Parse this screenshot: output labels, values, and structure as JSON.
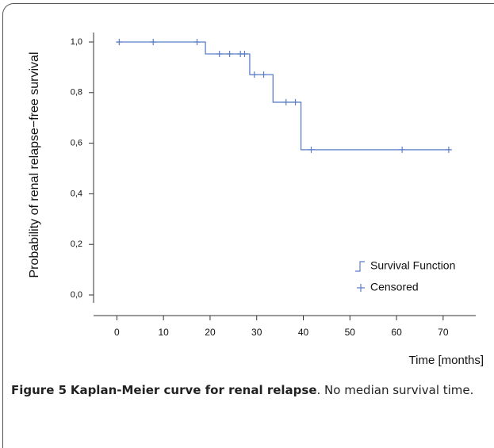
{
  "chart_data": {
    "type": "step",
    "ylabel": "Probability of renal relapse−free survival",
    "xlabel": "Time [months]",
    "xlim": [
      -5,
      77
    ],
    "xticks": [
      0,
      10,
      20,
      30,
      40,
      50,
      60,
      70
    ],
    "ylim": [
      0,
      1
    ],
    "yticks": [
      {
        "value": 0,
        "label": "0,0"
      },
      {
        "value": 0.2,
        "label": "0,2"
      },
      {
        "value": 0.4,
        "label": "0,4"
      },
      {
        "value": 0.6,
        "label": "0,6"
      },
      {
        "value": 0.8,
        "label": "0,8"
      },
      {
        "value": 1,
        "label": "1,0"
      }
    ],
    "series": [
      {
        "name": "Survival Function",
        "color": "#5a7ec6",
        "kind": "step",
        "x": [
          0,
          19,
          28.5,
          33.5,
          39.5,
          71.5
        ],
        "values": [
          1,
          0.953,
          0.871,
          0.762,
          0.574,
          0.574
        ]
      },
      {
        "name": "Censored",
        "color": "#5a7ec6",
        "kind": "censored",
        "x": [
          0.5,
          7.8,
          17.2,
          22,
          24.2,
          26.5,
          27.4,
          29.5,
          31.5,
          36.3,
          38.3,
          41.7,
          61.2,
          71.2
        ],
        "values": [
          1,
          1,
          1,
          0.953,
          0.953,
          0.953,
          0.953,
          0.871,
          0.871,
          0.762,
          0.762,
          0.574,
          0.574,
          0.574
        ]
      }
    ],
    "legend": "lower right"
  },
  "caption": {
    "label": "Figure 5",
    "title": "Kaplan-Meier curve for renal relapse",
    "text": ". No median survival time."
  }
}
